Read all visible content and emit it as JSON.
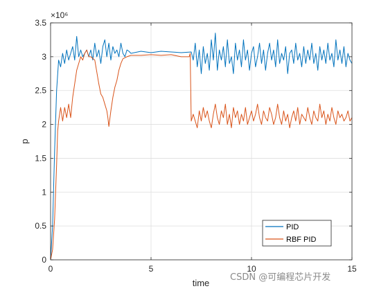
{
  "watermark": "CSDN @可编程芯片开发",
  "chart_data": {
    "type": "line",
    "title": "",
    "xlabel": "time",
    "ylabel": "p",
    "xlim": [
      0,
      15
    ],
    "ylim": [
      0,
      3.5
    ],
    "y_exponent_label": "×10⁶",
    "xticks": [
      "0",
      "5",
      "10",
      "15"
    ],
    "yticks": [
      "0",
      "0.5",
      "1",
      "1.5",
      "2",
      "2.5",
      "3",
      "3.5"
    ],
    "grid": true,
    "legend_position": "bottom-right",
    "series": [
      {
        "name": "PID",
        "color": "#0072BD",
        "x": [
          0,
          0.1,
          0.2,
          0.3,
          0.4,
          0.5,
          0.6,
          0.7,
          0.8,
          0.9,
          1.0,
          1.1,
          1.2,
          1.3,
          1.4,
          1.5,
          1.6,
          1.7,
          1.8,
          1.9,
          2.0,
          2.1,
          2.2,
          2.3,
          2.4,
          2.5,
          2.6,
          2.7,
          2.8,
          2.9,
          3.0,
          3.1,
          3.2,
          3.3,
          3.4,
          3.5,
          3.6,
          3.7,
          3.8,
          3.9,
          4.0,
          4.5,
          5.0,
          5.5,
          6.0,
          6.5,
          7.0,
          7.1,
          7.2,
          7.3,
          7.4,
          7.5,
          7.6,
          7.7,
          7.8,
          7.9,
          8.0,
          8.1,
          8.2,
          8.3,
          8.4,
          8.5,
          8.6,
          8.7,
          8.8,
          8.9,
          9.0,
          9.1,
          9.2,
          9.3,
          9.4,
          9.5,
          9.6,
          9.7,
          9.8,
          9.9,
          10.0,
          10.1,
          10.2,
          10.3,
          10.4,
          10.5,
          10.6,
          10.7,
          10.8,
          10.9,
          11.0,
          11.1,
          11.2,
          11.3,
          11.4,
          11.5,
          11.6,
          11.7,
          11.8,
          11.9,
          12.0,
          12.1,
          12.2,
          12.3,
          12.4,
          12.5,
          12.6,
          12.7,
          12.8,
          12.9,
          13.0,
          13.1,
          13.2,
          13.3,
          13.4,
          13.5,
          13.6,
          13.7,
          13.8,
          13.9,
          14.0,
          14.1,
          14.2,
          14.3,
          14.4,
          14.5,
          14.6,
          14.7,
          14.8,
          14.9,
          15.0
        ],
        "y": [
          0,
          0.5,
          1.6,
          2.5,
          2.95,
          2.85,
          3.05,
          2.9,
          3.1,
          2.95,
          3.05,
          3.15,
          2.95,
          3.3,
          3.0,
          3.1,
          3.0,
          3.05,
          3.1,
          3.0,
          3.1,
          2.95,
          3.2,
          3.0,
          3.1,
          2.9,
          3.15,
          3.25,
          3.0,
          3.2,
          2.95,
          3.15,
          3.05,
          3.1,
          3.0,
          3.2,
          3.05,
          3.0,
          3.1,
          3.08,
          3.05,
          3.08,
          3.06,
          3.08,
          3.07,
          3.06,
          3.07,
          2.95,
          3.2,
          2.85,
          3.1,
          2.75,
          3.15,
          2.9,
          3.05,
          2.8,
          3.25,
          2.95,
          3.35,
          2.8,
          3.1,
          2.95,
          3.15,
          2.85,
          3.25,
          2.9,
          3.0,
          2.75,
          3.2,
          2.95,
          3.1,
          2.85,
          3.25,
          2.95,
          3.1,
          2.8,
          3.05,
          3.15,
          2.85,
          3.0,
          3.2,
          2.9,
          3.1,
          2.8,
          3.05,
          3.2,
          2.95,
          3.1,
          2.85,
          3.25,
          2.9,
          3.05,
          2.95,
          3.15,
          2.75,
          3.05,
          3.1,
          2.9,
          3.2,
          2.95,
          3.05,
          2.85,
          3.15,
          2.9,
          3.1,
          2.95,
          3.2,
          2.9,
          3.05,
          2.8,
          3.15,
          2.95,
          3.1,
          2.9,
          3.2,
          2.95,
          3.05,
          2.85,
          3.25,
          2.95,
          3.1,
          2.9,
          3.15,
          2.85,
          3.05,
          2.95,
          2.9
        ]
      },
      {
        "name": "RBF PID",
        "color": "#D95319",
        "x": [
          0,
          0.1,
          0.2,
          0.3,
          0.35,
          0.4,
          0.5,
          0.6,
          0.7,
          0.8,
          0.9,
          1.0,
          1.1,
          1.2,
          1.3,
          1.4,
          1.5,
          1.6,
          1.7,
          1.8,
          1.9,
          2.0,
          2.2,
          2.4,
          2.5,
          2.6,
          2.7,
          2.8,
          2.85,
          2.9,
          3.0,
          3.1,
          3.2,
          3.3,
          3.4,
          3.5,
          3.6,
          3.8,
          4.0,
          4.5,
          5.0,
          5.5,
          6.0,
          6.5,
          6.9,
          6.95,
          7.0,
          7.1,
          7.2,
          7.3,
          7.4,
          7.5,
          7.6,
          7.7,
          7.8,
          7.9,
          8.0,
          8.1,
          8.2,
          8.3,
          8.4,
          8.5,
          8.6,
          8.7,
          8.8,
          8.9,
          9.0,
          9.1,
          9.2,
          9.3,
          9.4,
          9.5,
          9.6,
          9.7,
          9.8,
          9.9,
          10.0,
          10.1,
          10.2,
          10.3,
          10.4,
          10.5,
          10.6,
          10.7,
          10.8,
          10.9,
          11.0,
          11.1,
          11.2,
          11.3,
          11.4,
          11.5,
          11.6,
          11.7,
          11.8,
          11.9,
          12.0,
          12.1,
          12.2,
          12.3,
          12.4,
          12.5,
          12.6,
          12.7,
          12.8,
          12.9,
          13.0,
          13.1,
          13.2,
          13.3,
          13.4,
          13.5,
          13.6,
          13.7,
          13.8,
          13.9,
          14.0,
          14.1,
          14.2,
          14.3,
          14.4,
          14.5,
          14.6,
          14.7,
          14.8,
          14.9,
          15.0
        ],
        "y": [
          0,
          0.15,
          0.6,
          1.4,
          1.9,
          2.05,
          2.25,
          2.05,
          2.25,
          2.1,
          2.3,
          2.1,
          2.4,
          2.6,
          2.8,
          2.9,
          3.0,
          2.95,
          3.05,
          3.1,
          3.0,
          3.0,
          2.95,
          2.6,
          2.45,
          2.4,
          2.3,
          2.2,
          2.1,
          1.97,
          2.2,
          2.4,
          2.55,
          2.65,
          2.8,
          2.9,
          2.97,
          3.0,
          3.02,
          3.02,
          3.03,
          3.02,
          3.03,
          3.0,
          3.0,
          3.05,
          2.05,
          2.15,
          2.05,
          1.95,
          2.2,
          2.05,
          2.25,
          2.1,
          2.2,
          2.05,
          1.95,
          2.15,
          2.3,
          2.1,
          2.0,
          2.2,
          2.1,
          2.3,
          2.0,
          2.15,
          1.95,
          2.25,
          2.1,
          2.2,
          2.0,
          2.15,
          2.05,
          2.25,
          2.0,
          2.1,
          2.2,
          2.05,
          2.15,
          2.3,
          2.1,
          2.0,
          2.2,
          2.1,
          2.05,
          2.25,
          2.15,
          2.0,
          2.1,
          2.3,
          2.1,
          2.0,
          2.2,
          2.05,
          2.15,
          1.95,
          2.1,
          2.2,
          2.05,
          2.25,
          2.0,
          2.15,
          2.1,
          2.05,
          2.25,
          2.1,
          2.0,
          2.2,
          2.1,
          2.05,
          2.3,
          2.1,
          2.2,
          2.0,
          2.15,
          2.05,
          2.25,
          2.1,
          2.0,
          2.2,
          2.1,
          2.15,
          2.05,
          2.1,
          2.2,
          2.05,
          2.1
        ]
      }
    ]
  }
}
